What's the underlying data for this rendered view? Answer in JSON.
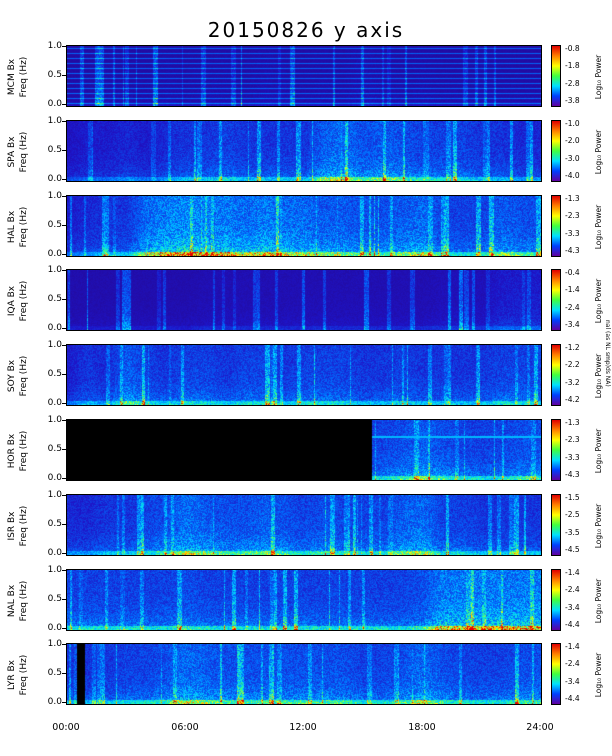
{
  "title": "20150826 y axis",
  "side_note": "nal (as NL smp)ds NA)",
  "xticks": [
    "00:00",
    "06:00",
    "12:00",
    "18:00",
    "24:00"
  ],
  "yticks": [
    "1.0",
    "0.5",
    "0.0"
  ],
  "freq_label": "Freq (Hz)",
  "cbar_label": "Log₁₀ Power",
  "colors": {
    "low": "#3000b0",
    "mid": "#00c8ff",
    "high": "#e00000",
    "black": "#000000"
  },
  "chart_data": {
    "type": "heatmap",
    "title": "20150826 y axis",
    "xlabel": "",
    "x_range": [
      "00:00",
      "24:00"
    ],
    "x_ticks": [
      "00:00",
      "06:00",
      "12:00",
      "18:00",
      "24:00"
    ],
    "ylabel": "Freq (Hz)",
    "ylim": [
      0.0,
      1.0
    ],
    "y_ticks": [
      0.0,
      0.5,
      1.0
    ],
    "colorbar_label": "Log₁₀ Power",
    "panels": [
      {
        "station": "MCM",
        "label": "MCM Bx",
        "cbar_ticks": [
          "-0.8",
          "-1.8",
          "-2.8",
          "-3.8"
        ],
        "vmin": -3.8,
        "vmax": -0.8,
        "activity": [
          0.05,
          0.05,
          0.06,
          0.05,
          0.05,
          0.06,
          0.05,
          0.06,
          0.06,
          0.05,
          0.07,
          0.06,
          0.05,
          0.06,
          0.05,
          0.08,
          0.06,
          0.05,
          0.06,
          0.05,
          0.05,
          0.06,
          0.05,
          0.05
        ],
        "harmonics": true
      },
      {
        "station": "SPA",
        "label": "SPA Bx",
        "cbar_ticks": [
          "-1.0",
          "-2.0",
          "-3.0",
          "-4.0"
        ],
        "vmin": -4.0,
        "vmax": -1.0,
        "activity": [
          0.15,
          0.2,
          0.2,
          0.25,
          0.2,
          0.25,
          0.3,
          0.3,
          0.35,
          0.3,
          0.3,
          0.3,
          0.3,
          0.45,
          0.5,
          0.4,
          0.45,
          0.4,
          0.35,
          0.35,
          0.35,
          0.3,
          0.3,
          0.25
        ]
      },
      {
        "station": "HAL",
        "label": "HAL Bx",
        "cbar_ticks": [
          "-1.3",
          "-2.3",
          "-3.3",
          "-4.3"
        ],
        "vmin": -4.3,
        "vmax": -1.3,
        "activity": [
          0.2,
          0.25,
          0.3,
          0.3,
          0.5,
          0.55,
          0.6,
          0.55,
          0.55,
          0.5,
          0.55,
          0.5,
          0.5,
          0.45,
          0.45,
          0.4,
          0.4,
          0.45,
          0.5,
          0.35,
          0.35,
          0.35,
          0.45,
          0.4
        ]
      },
      {
        "station": "IQA",
        "label": "IQA Bx",
        "cbar_ticks": [
          "-0.4",
          "-1.4",
          "-2.4",
          "-3.4"
        ],
        "vmin": -3.4,
        "vmax": -0.4,
        "activity": [
          0.08,
          0.08,
          0.08,
          0.08,
          0.08,
          0.08,
          0.08,
          0.1,
          0.1,
          0.1,
          0.1,
          0.1,
          0.1,
          0.1,
          0.1,
          0.1,
          0.1,
          0.1,
          0.1,
          0.12,
          0.12,
          0.12,
          0.2,
          0.2
        ]
      },
      {
        "station": "SOY",
        "label": "SOY Bx",
        "cbar_ticks": [
          "-1.2",
          "-2.2",
          "-3.2",
          "-4.2"
        ],
        "vmin": -4.2,
        "vmax": -1.2,
        "activity": [
          0.2,
          0.3,
          0.25,
          0.45,
          0.35,
          0.3,
          0.35,
          0.35,
          0.3,
          0.35,
          0.35,
          0.3,
          0.35,
          0.35,
          0.35,
          0.3,
          0.3,
          0.35,
          0.3,
          0.3,
          0.3,
          0.3,
          0.35,
          0.35
        ]
      },
      {
        "station": "HOR",
        "label": "HOR Bx",
        "cbar_ticks": [
          "-1.3",
          "-2.3",
          "-3.3",
          "-4.3"
        ],
        "vmin": -4.3,
        "vmax": -1.3,
        "activity": [
          0,
          0,
          0,
          0,
          0,
          0,
          0,
          0,
          0,
          0,
          0,
          0,
          0,
          0,
          0,
          0.35,
          0.35,
          0.4,
          0.45,
          0.4,
          0.35,
          0.35,
          0.35,
          0.4
        ],
        "data_gap_until_hour": 15.4
      },
      {
        "station": "ISR",
        "label": "ISR Bx",
        "cbar_ticks": [
          "-1.5",
          "-2.5",
          "-3.5",
          "-4.5"
        ],
        "vmin": -4.5,
        "vmax": -1.5,
        "activity": [
          0.25,
          0.25,
          0.3,
          0.3,
          0.35,
          0.4,
          0.5,
          0.45,
          0.4,
          0.4,
          0.45,
          0.4,
          0.35,
          0.4,
          0.35,
          0.35,
          0.35,
          0.45,
          0.5,
          0.35,
          0.35,
          0.3,
          0.3,
          0.3
        ]
      },
      {
        "station": "NAL",
        "label": "NAL Bx",
        "cbar_ticks": [
          "-1.4",
          "-2.4",
          "-3.4",
          "-4.4"
        ],
        "vmin": -4.4,
        "vmax": -1.4,
        "activity": [
          0.35,
          0.35,
          0.35,
          0.35,
          0.35,
          0.35,
          0.4,
          0.35,
          0.35,
          0.35,
          0.35,
          0.35,
          0.35,
          0.35,
          0.35,
          0.35,
          0.35,
          0.35,
          0.4,
          0.55,
          0.55,
          0.55,
          0.55,
          0.55
        ]
      },
      {
        "station": "LYR",
        "label": "LYR Bx",
        "cbar_ticks": [
          "-1.4",
          "-2.4",
          "-3.4",
          "-4.4"
        ],
        "vmin": -4.4,
        "vmax": -1.4,
        "activity": [
          0.3,
          0.3,
          0.3,
          0.35,
          0.35,
          0.4,
          0.5,
          0.45,
          0.4,
          0.4,
          0.4,
          0.4,
          0.4,
          0.4,
          0.4,
          0.35,
          0.35,
          0.4,
          0.5,
          0.4,
          0.35,
          0.35,
          0.35,
          0.4
        ],
        "gap_hours": [
          0.5,
          0.9
        ]
      }
    ]
  }
}
